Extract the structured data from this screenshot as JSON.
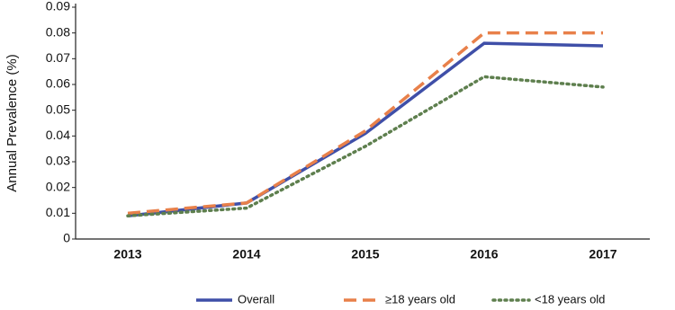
{
  "chart_data": {
    "type": "line",
    "y_label": "Annual Prevalence (%)",
    "categories": [
      "2013",
      "2014",
      "2015",
      "2016",
      "2017"
    ],
    "series": [
      {
        "name": "Overall",
        "color": "#3f4fa8",
        "dash": "solid",
        "values": [
          0.009,
          0.014,
          0.041,
          0.076,
          0.075
        ]
      },
      {
        "name": "≥18 years old",
        "color": "#e8804a",
        "dash": "dashed",
        "values": [
          0.01,
          0.014,
          0.042,
          0.08,
          0.08
        ]
      },
      {
        "name": "<18 years old",
        "color": "#5e7f4e",
        "dash": "dotted",
        "values": [
          0.009,
          0.012,
          0.036,
          0.063,
          0.059
        ]
      }
    ],
    "ylim": [
      0,
      0.09
    ],
    "yticks": [
      0,
      0.01,
      0.02,
      0.03,
      0.04,
      0.05,
      0.06,
      0.07,
      0.08,
      0.09
    ],
    "grid": false,
    "legend": "bottom"
  }
}
